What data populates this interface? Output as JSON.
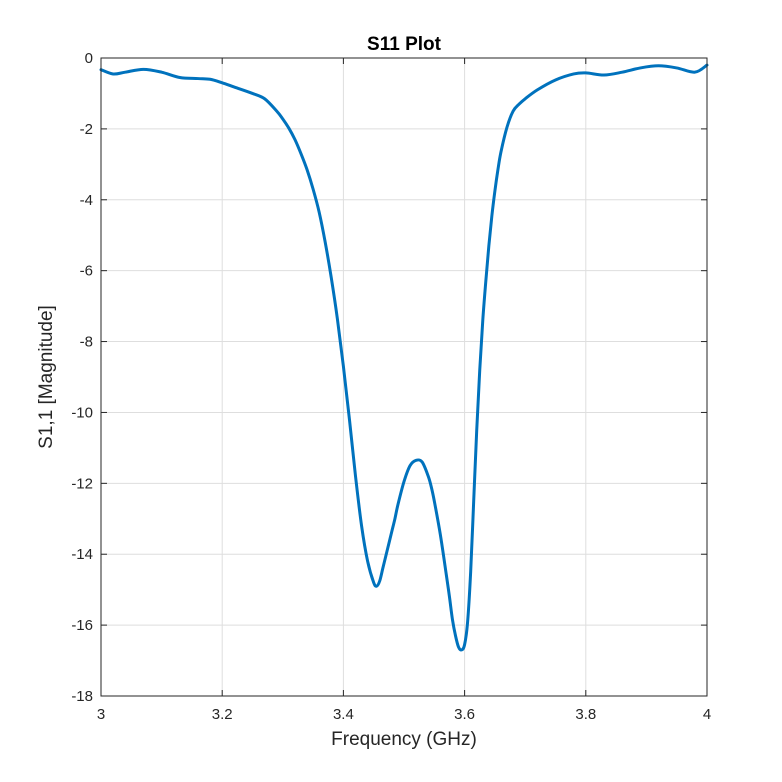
{
  "chart_data": {
    "type": "line",
    "title": "S11 Plot",
    "xlabel": "Frequency (GHz)",
    "ylabel": "S1,1 [Magnitude]",
    "xlim": [
      3,
      4
    ],
    "ylim": [
      -18,
      0
    ],
    "xticks": [
      "3",
      "3.2",
      "3.4",
      "3.6",
      "3.8",
      "4"
    ],
    "yticks": [
      "0",
      "-2",
      "-4",
      "-6",
      "-8",
      "-10",
      "-12",
      "-14",
      "-16",
      "-18"
    ],
    "grid": true,
    "line_color": "#0072BD",
    "series": [
      {
        "x": [
          3.0,
          3.02,
          3.04,
          3.07,
          3.1,
          3.13,
          3.16,
          3.18,
          3.2,
          3.22,
          3.25,
          3.27,
          3.29,
          3.3,
          3.31,
          3.32,
          3.33,
          3.34,
          3.35,
          3.36,
          3.37,
          3.38,
          3.39,
          3.4,
          3.41,
          3.42,
          3.43,
          3.44,
          3.45,
          3.455,
          3.46,
          3.465,
          3.47,
          3.475,
          3.48,
          3.485,
          3.49,
          3.5,
          3.51,
          3.52,
          3.53,
          3.54,
          3.545,
          3.55,
          3.56,
          3.57,
          3.575,
          3.58,
          3.585,
          3.59,
          3.595,
          3.6,
          3.605,
          3.61,
          3.615,
          3.62,
          3.625,
          3.63,
          3.635,
          3.64,
          3.645,
          3.65,
          3.655,
          3.66,
          3.67,
          3.68,
          3.69,
          3.7,
          3.72,
          3.75,
          3.78,
          3.8,
          3.83,
          3.86,
          3.89,
          3.92,
          3.95,
          3.98,
          4.0
        ],
        "y": [
          -0.33,
          -0.45,
          -0.4,
          -0.32,
          -0.4,
          -0.55,
          -0.58,
          -0.6,
          -0.7,
          -0.82,
          -1.0,
          -1.15,
          -1.5,
          -1.72,
          -1.98,
          -2.3,
          -2.7,
          -3.15,
          -3.7,
          -4.35,
          -5.2,
          -6.2,
          -7.35,
          -8.7,
          -10.2,
          -11.8,
          -13.2,
          -14.2,
          -14.8,
          -14.9,
          -14.75,
          -14.4,
          -14.05,
          -13.7,
          -13.35,
          -13.0,
          -12.6,
          -11.95,
          -11.5,
          -11.35,
          -11.4,
          -11.8,
          -12.1,
          -12.5,
          -13.45,
          -14.6,
          -15.2,
          -15.85,
          -16.3,
          -16.62,
          -16.7,
          -16.55,
          -15.9,
          -14.5,
          -12.5,
          -10.5,
          -8.8,
          -7.4,
          -6.3,
          -5.3,
          -4.45,
          -3.75,
          -3.15,
          -2.65,
          -1.95,
          -1.5,
          -1.3,
          -1.15,
          -0.9,
          -0.62,
          -0.45,
          -0.42,
          -0.48,
          -0.4,
          -0.28,
          -0.22,
          -0.28,
          -0.4,
          -0.2
        ]
      }
    ]
  }
}
